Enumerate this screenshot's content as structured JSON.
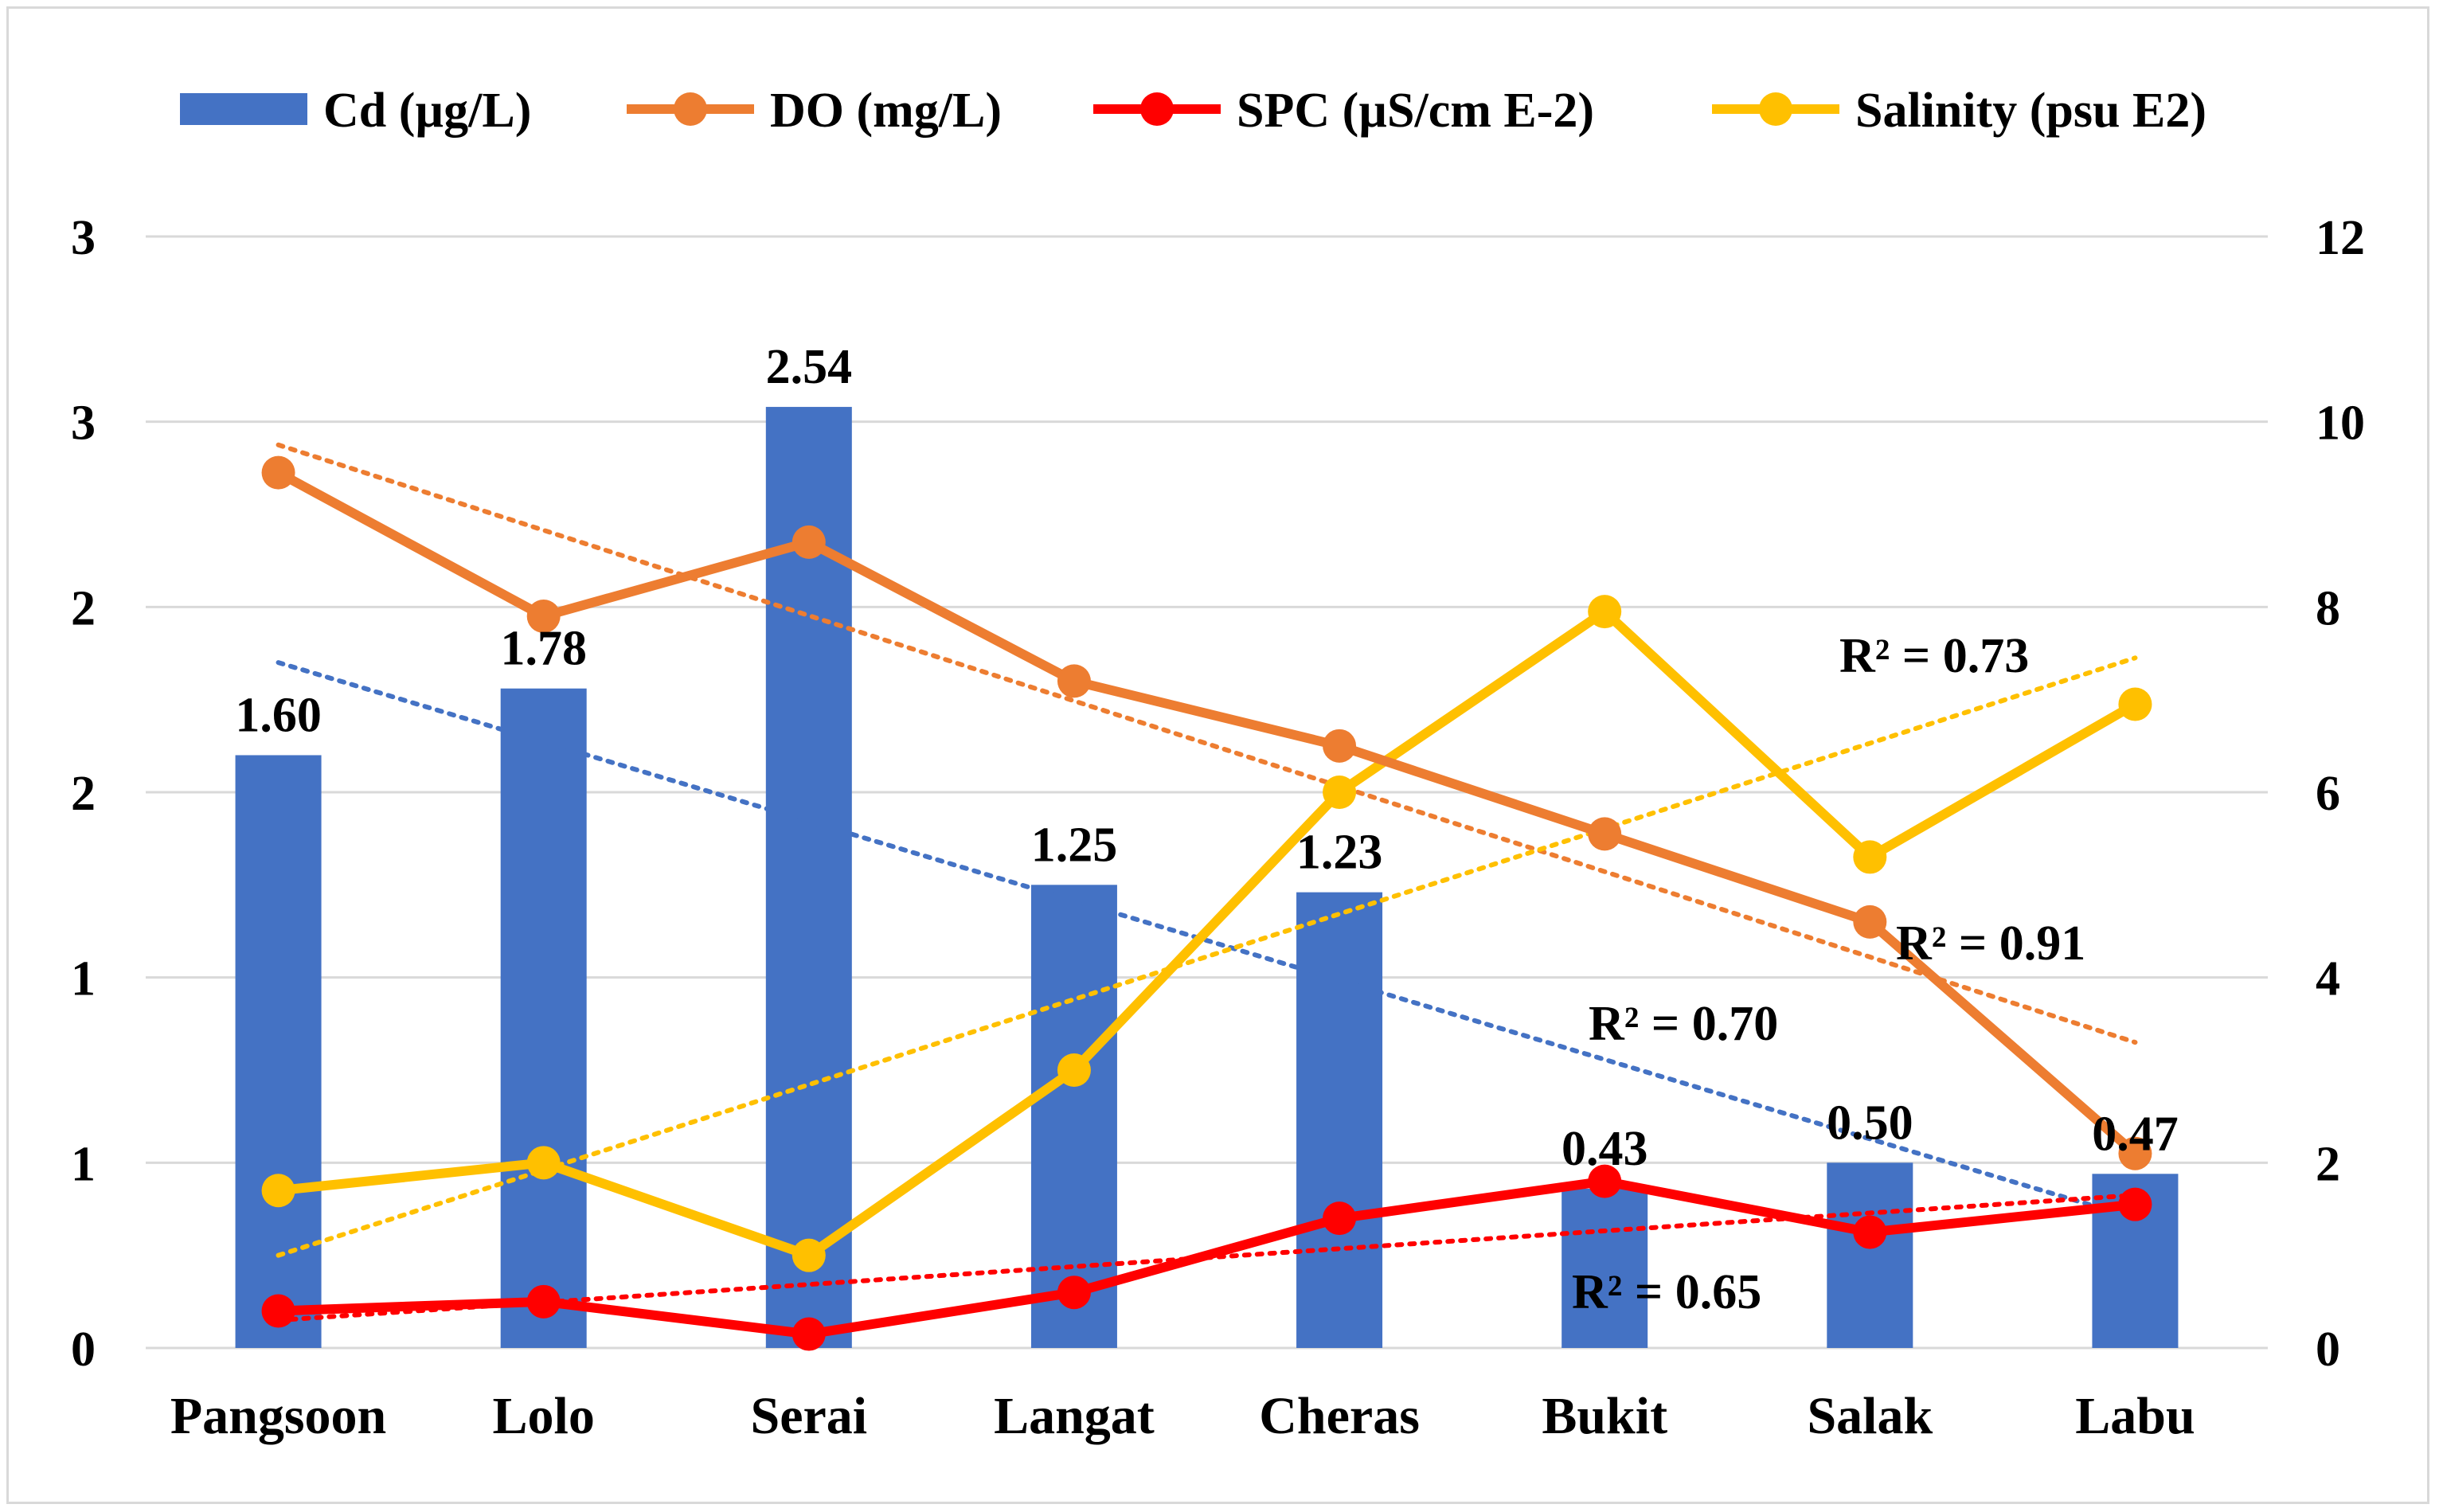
{
  "chart_data": {
    "type": "bar+line",
    "categories": [
      "Pangsoon",
      "Lolo",
      "Serai",
      "Langat",
      "Cheras",
      "Bukit",
      "Salak",
      "Labu"
    ],
    "left_axis": {
      "ticks": [
        {
          "value": 0,
          "label": "0"
        },
        {
          "value": 0.5,
          "label": "1"
        },
        {
          "value": 1.0,
          "label": "1"
        },
        {
          "value": 1.5,
          "label": "2"
        },
        {
          "value": 2.0,
          "label": "2"
        },
        {
          "value": 2.5,
          "label": "3"
        },
        {
          "value": 3.0,
          "label": "3"
        }
      ],
      "ylim": [
        0,
        3.0
      ]
    },
    "right_axis": {
      "ticks": [
        {
          "value": 0,
          "label": "0"
        },
        {
          "value": 2,
          "label": "2"
        },
        {
          "value": 4,
          "label": "4"
        },
        {
          "value": 6,
          "label": "6"
        },
        {
          "value": 8,
          "label": "8"
        },
        {
          "value": 10,
          "label": "10"
        },
        {
          "value": 12,
          "label": "12"
        }
      ],
      "ylim": [
        0,
        12
      ]
    },
    "series": [
      {
        "name": "Cd (µg/L)",
        "kind": "bar",
        "axis": "left",
        "color": "#4472C4",
        "values": [
          1.6,
          1.78,
          2.54,
          1.25,
          1.23,
          0.43,
          0.5,
          0.47
        ],
        "labels": [
          "1.60",
          "1.78",
          "2.54",
          "1.25",
          "1.23",
          "0.43",
          "0.50",
          "0.47"
        ]
      },
      {
        "name": "DO (mg/L)",
        "kind": "line",
        "axis": "right",
        "color": "#ED7D31",
        "values": [
          9.45,
          7.9,
          8.7,
          7.2,
          6.5,
          5.55,
          4.6,
          2.1
        ]
      },
      {
        "name": "SPC (µS/cm E-2)",
        "kind": "line",
        "axis": "right",
        "color": "#FF0000",
        "values": [
          0.4,
          0.5,
          0.15,
          0.6,
          1.4,
          1.8,
          1.25,
          1.55
        ]
      },
      {
        "name": "Salinity (psu E2)",
        "kind": "line",
        "axis": "right",
        "color": "#FFC000",
        "values": [
          1.7,
          2.0,
          1.0,
          3.0,
          6.0,
          7.95,
          5.3,
          6.95
        ]
      }
    ],
    "trendlines": [
      {
        "series": "Cd (µg/L)",
        "axis": "left",
        "color": "#4472C4",
        "start": 1.85,
        "end": 0.35,
        "r2_label": "R² = 0.70"
      },
      {
        "series": "DO (mg/L)",
        "axis": "right",
        "color": "#ED7D31",
        "start": 9.75,
        "end": 3.3,
        "r2_label": "R² = 0.91"
      },
      {
        "series": "SPC (µS/cm E-2)",
        "axis": "right",
        "color": "#FF0000",
        "start": 0.3,
        "end": 1.65,
        "r2_label": "R² = 0.65"
      },
      {
        "series": "Salinity (psu E2)",
        "axis": "right",
        "color": "#FFC000",
        "start": 1.0,
        "end": 7.45,
        "r2_label": "R² = 0.73"
      }
    ],
    "legend_position": "top",
    "grid": true,
    "title": "",
    "xlabel": "",
    "ylabel": ""
  }
}
